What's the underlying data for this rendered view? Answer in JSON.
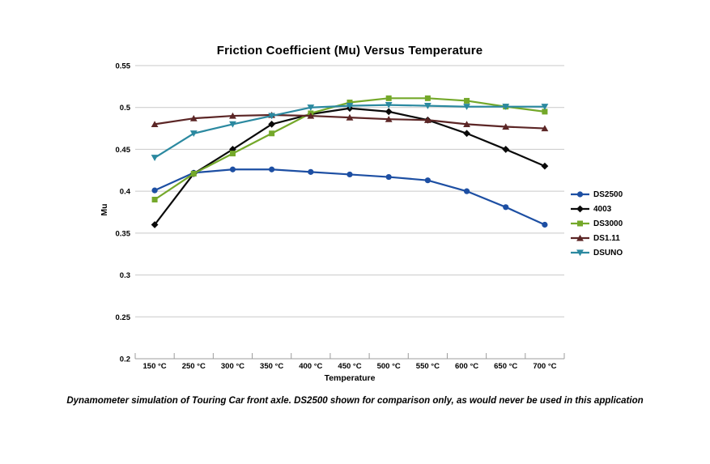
{
  "title": "Friction Coefficient (Mu) Versus Temperature",
  "caption": "Dynamometer simulation of Touring Car front axle. DS2500 shown for comparison only, as would never be used in this application",
  "colors": {
    "background": "#FFFFFF",
    "grid": "#C9C9C9",
    "axis": "#9C9C9C",
    "text": "#000000"
  },
  "chart_data": {
    "type": "line",
    "title": "Friction Coefficient (Mu) Versus Temperature",
    "xlabel": "Temperature",
    "ylabel": "Mu",
    "ylim": [
      0.2,
      0.55
    ],
    "ytick_step": 0.05,
    "grid": true,
    "legend_position": "right",
    "categories": [
      "150 °C",
      "250 °C",
      "300 °C",
      "350 °C",
      "400 °C",
      "450 °C",
      "500 °C",
      "550 °C",
      "600 °C",
      "650 °C",
      "700 °C"
    ],
    "series": [
      {
        "name": "DS2500",
        "marker": "circle",
        "color": "#1D4FA3",
        "values": [
          0.401,
          0.422,
          0.426,
          0.426,
          0.423,
          0.42,
          0.417,
          0.413,
          0.4,
          0.381,
          0.36
        ]
      },
      {
        "name": "4003",
        "marker": "diamond",
        "color": "#0A0A0A",
        "values": [
          0.36,
          0.421,
          0.45,
          0.48,
          0.492,
          0.499,
          0.495,
          0.485,
          0.469,
          0.45,
          0.43
        ]
      },
      {
        "name": "DS3000",
        "marker": "square",
        "color": "#74A82A",
        "values": [
          0.39,
          0.421,
          0.445,
          0.469,
          0.493,
          0.506,
          0.511,
          0.511,
          0.508,
          0.501,
          0.495
        ]
      },
      {
        "name": "DS1.11",
        "marker": "triangle-up",
        "color": "#5C2626",
        "values": [
          0.48,
          0.487,
          0.49,
          0.491,
          0.49,
          0.488,
          0.486,
          0.485,
          0.48,
          0.477,
          0.475
        ]
      },
      {
        "name": "DSUNO",
        "marker": "triangle-down",
        "color": "#2B89A0",
        "values": [
          0.44,
          0.469,
          0.48,
          0.49,
          0.5,
          0.502,
          0.503,
          0.502,
          0.501,
          0.501,
          0.501
        ]
      }
    ]
  }
}
